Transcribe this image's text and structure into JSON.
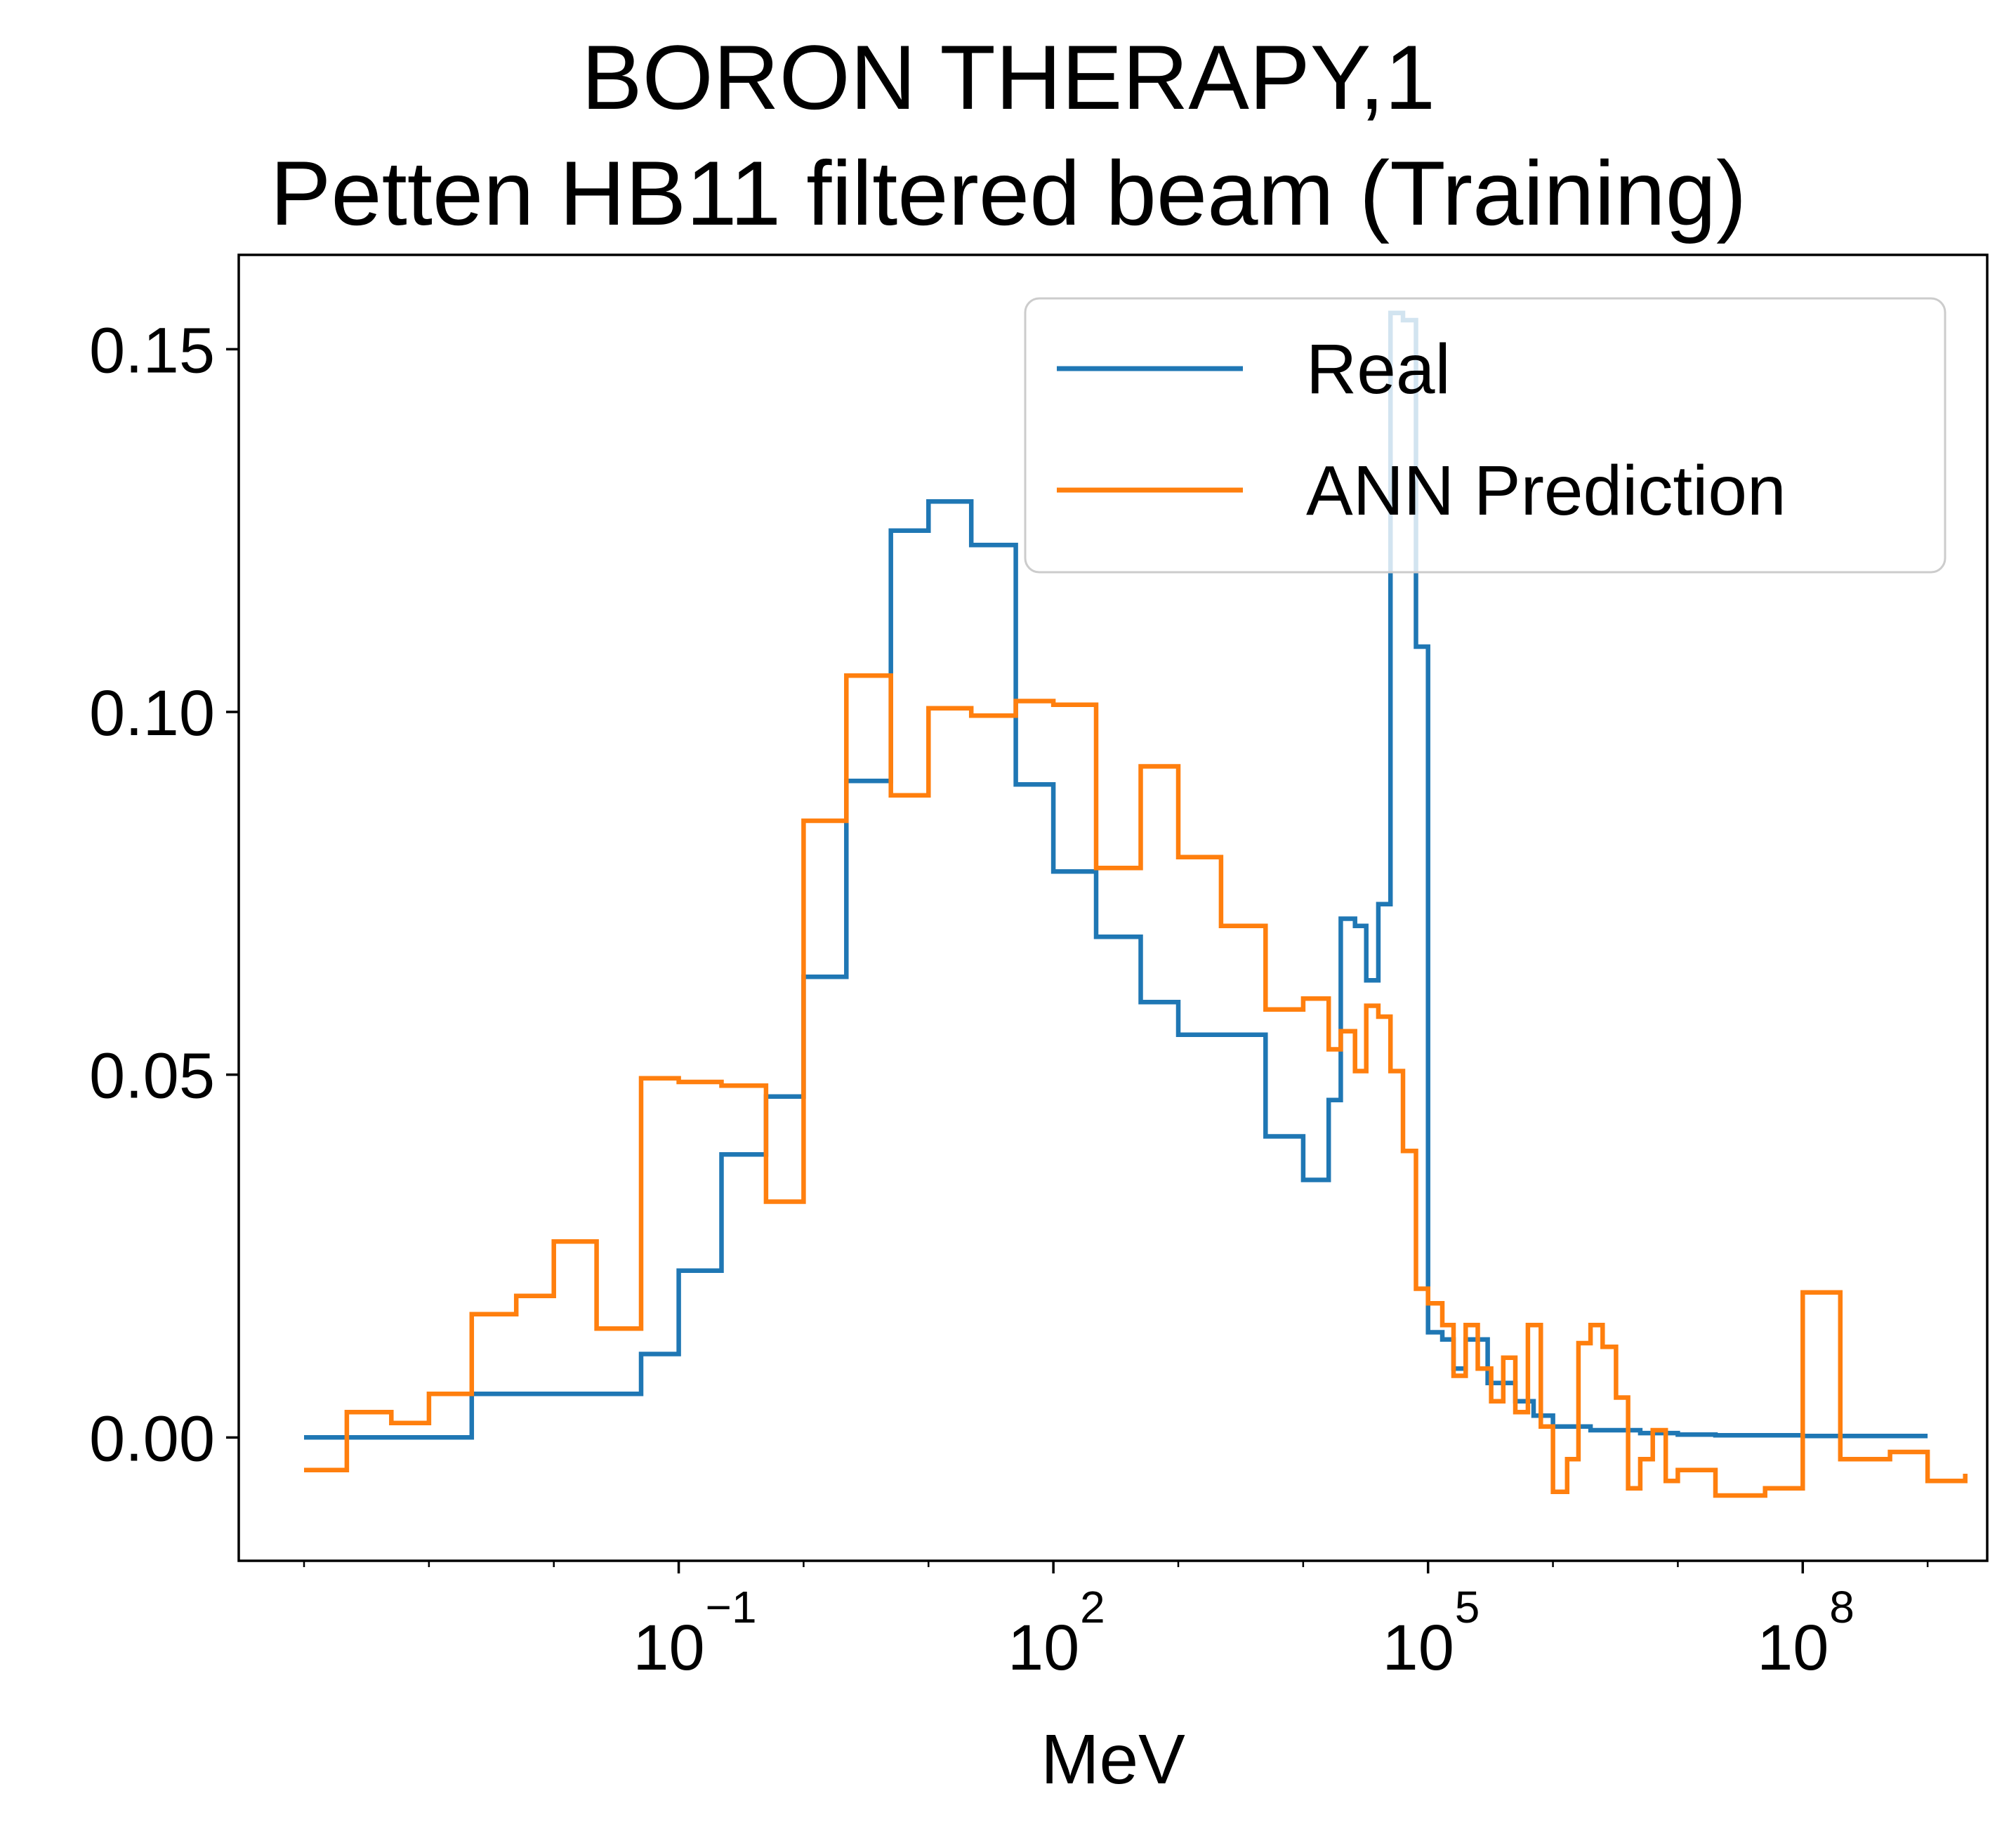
{
  "chart_data": {
    "type": "line",
    "title": "BORON THERAPY,1",
    "subtitle": "Petten HB11 filtered beam (Training)",
    "xlabel": "MeV",
    "ylabel": "",
    "xscale": "log",
    "xlim": [
      3e-05,
      3000000000.0
    ],
    "ylim": [
      -0.017,
      0.163
    ],
    "yticks": [
      "0.00",
      "0.05",
      "0.10",
      "0.15"
    ],
    "ytick_values": [
      0,
      0.05,
      0.1,
      0.15
    ],
    "xticks": [
      {
        "base": "10",
        "exp": "−1",
        "value": 0.1
      },
      {
        "base": "10",
        "exp": "2",
        "value": 100
      },
      {
        "base": "10",
        "exp": "5",
        "value": 100000
      },
      {
        "base": "10",
        "exp": "8",
        "value": 100000000
      }
    ],
    "grid": false,
    "legend_position": "top-right",
    "series": [
      {
        "name": "Real",
        "color": "#1f77b4",
        "step": "post",
        "x": [
          0.0001,
          0.00022,
          0.0005,
          0.001,
          0.0022,
          0.005,
          0.01,
          0.022,
          0.05,
          0.1,
          0.22,
          0.5,
          1.0,
          2.2,
          5.0,
          10,
          22,
          50,
          100,
          220,
          500,
          1000,
          2200,
          5000,
          10000,
          16000,
          20000,
          26000,
          32000,
          40000,
          50000,
          63000,
          80000,
          100000,
          130000,
          160000,
          200000,
          300000,
          500000,
          700000,
          1000000,
          2000000,
          5000000,
          10000000,
          20000000,
          50000000,
          100000000,
          200000000,
          500000000,
          1000000000
        ],
        "y": [
          0.0,
          0.0,
          0.0,
          0.0,
          0.006,
          0.006,
          0.006,
          0.006,
          0.0115,
          0.023,
          0.039,
          0.047,
          0.0635,
          0.0905,
          0.125,
          0.129,
          0.123,
          0.09,
          0.078,
          0.069,
          0.06,
          0.0555,
          0.0555,
          0.0415,
          0.0355,
          0.0465,
          0.0715,
          0.0705,
          0.063,
          0.0735,
          0.155,
          0.154,
          0.109,
          0.0145,
          0.0135,
          0.0095,
          0.0135,
          0.0075,
          0.005,
          0.003,
          0.0015,
          0.001,
          0.0006,
          0.0004,
          0.0003,
          0.0003,
          0.0002,
          0.0002,
          0.0002,
          0.0002
        ]
      },
      {
        "name": "ANN Prediction",
        "color": "#ff7f0e",
        "step": "post",
        "x": [
          0.0001,
          0.00022,
          0.0005,
          0.001,
          0.0022,
          0.005,
          0.01,
          0.022,
          0.05,
          0.1,
          0.22,
          0.5,
          1.0,
          2.2,
          5.0,
          10,
          22,
          50,
          100,
          220,
          500,
          1000,
          2200,
          5000,
          10000,
          16000,
          20000,
          26000,
          32000,
          40000,
          50000,
          63000,
          80000,
          100000,
          130000,
          160000,
          200000,
          250000,
          320000,
          400000,
          500000,
          630000,
          800000,
          1000000,
          1300000,
          1600000,
          2000000,
          2500000,
          3200000,
          4000000,
          5000000,
          6300000,
          8000000,
          10000000,
          20000000,
          50000000,
          100000000,
          200000000,
          500000000,
          1000000000,
          2000000000
        ],
        "y": [
          -0.0045,
          0.0035,
          0.002,
          0.006,
          0.017,
          0.0195,
          0.027,
          0.015,
          0.0495,
          0.049,
          0.0485,
          0.0325,
          0.085,
          0.105,
          0.0885,
          0.1005,
          0.0995,
          0.1015,
          0.101,
          0.0785,
          0.0925,
          0.08,
          0.0705,
          0.059,
          0.0605,
          0.0535,
          0.056,
          0.0505,
          0.0595,
          0.058,
          0.0505,
          0.0395,
          0.0205,
          0.0185,
          0.0155,
          0.0085,
          0.0155,
          0.0095,
          0.005,
          0.011,
          0.0035,
          0.0155,
          0.0015,
          -0.0075,
          -0.003,
          0.013,
          0.0155,
          0.0125,
          0.0055,
          -0.007,
          -0.003,
          0.001,
          -0.006,
          -0.0045,
          -0.008,
          -0.007,
          0.02,
          -0.003,
          -0.002,
          -0.006,
          -0.005
        ]
      }
    ]
  }
}
